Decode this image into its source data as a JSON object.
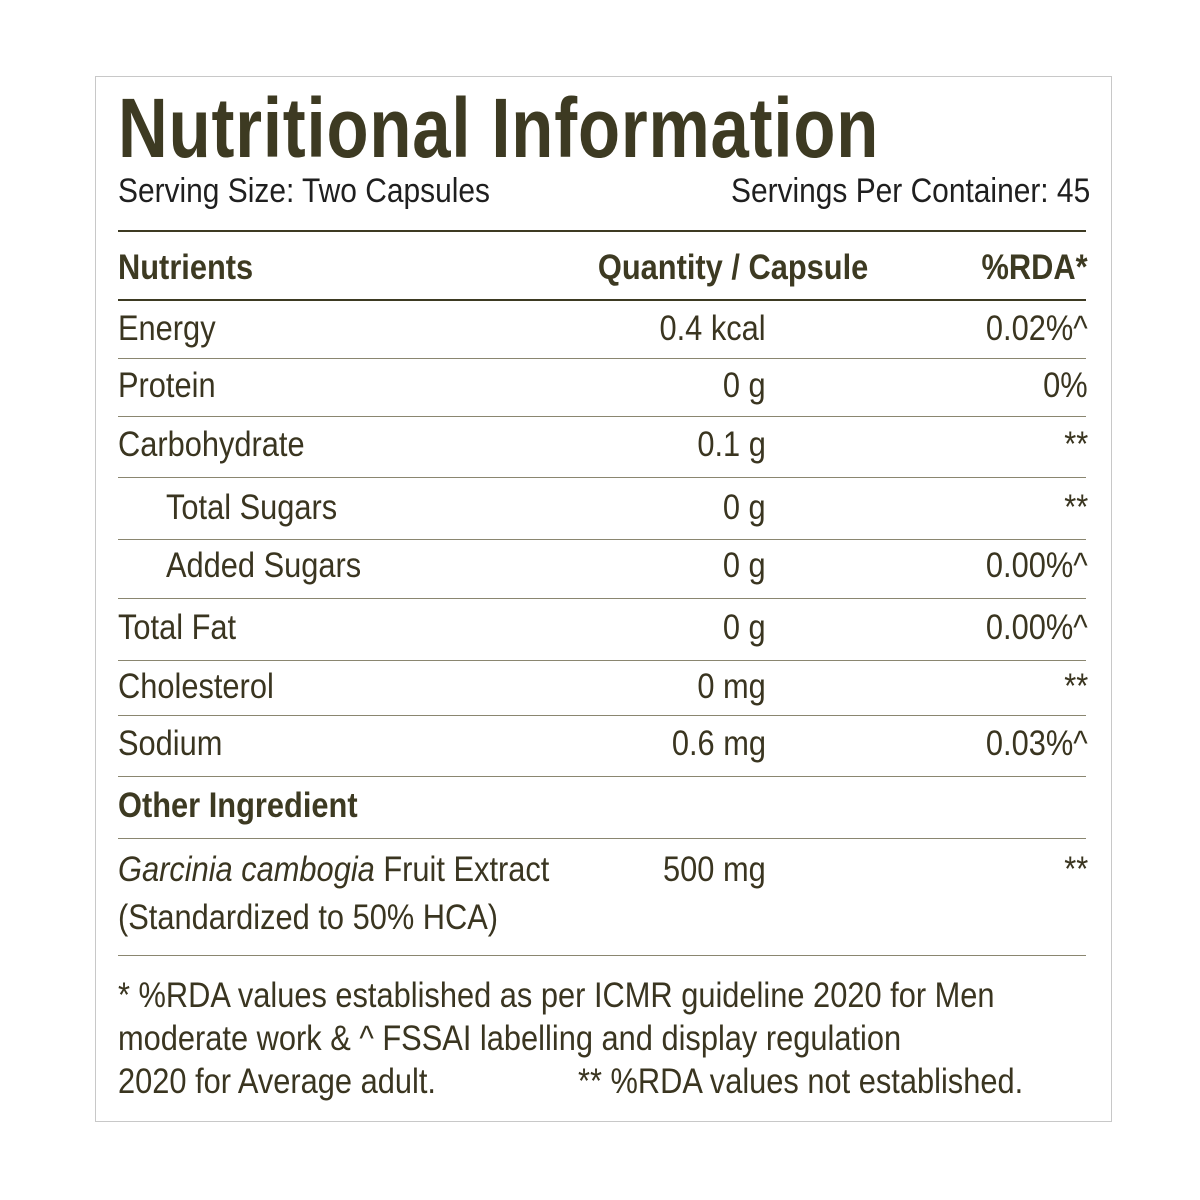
{
  "title": "Nutritional Information",
  "serving_size": "Serving Size: Two Capsules",
  "servings_per_container": "Servings Per Container: 45",
  "table": {
    "headers": [
      "Nutrients",
      "Quantity / Capsule",
      "%RDA*"
    ],
    "rows": [
      {
        "nutrient": "Energy",
        "quantity": "0.4 kcal",
        "rda": "0.02%^"
      },
      {
        "nutrient": "Protein",
        "quantity": "0 g",
        "rda": "0%"
      },
      {
        "nutrient": "Carbohydrate",
        "quantity": "0.1 g",
        "rda": "**"
      },
      {
        "nutrient": "Total Sugars",
        "quantity": "0 g",
        "rda": "**"
      },
      {
        "nutrient": "Added Sugars",
        "quantity": "0 g",
        "rda": "0.00%^"
      },
      {
        "nutrient": "Total Fat",
        "quantity": "0 g",
        "rda": "0.00%^"
      },
      {
        "nutrient": "Cholesterol",
        "quantity": "0 mg",
        "rda": "**"
      },
      {
        "nutrient": "Sodium",
        "quantity": "0.6 mg",
        "rda": "0.03%^"
      }
    ]
  },
  "other": {
    "heading": "Other Ingredient",
    "name_italic": "Garcinia cambogia",
    "name_rest": " Fruit Extract",
    "detail": "(Standardized to 50% HCA)",
    "quantity": "500 mg",
    "rda": "**"
  },
  "footnote": {
    "line1": "* %RDA values established as per ICMR guideline 2020 for Men",
    "line2": "moderate work & ^ FSSAI labelling and display regulation",
    "line3a": "2020 for Average adult.",
    "line3b": "** %RDA values not established."
  }
}
